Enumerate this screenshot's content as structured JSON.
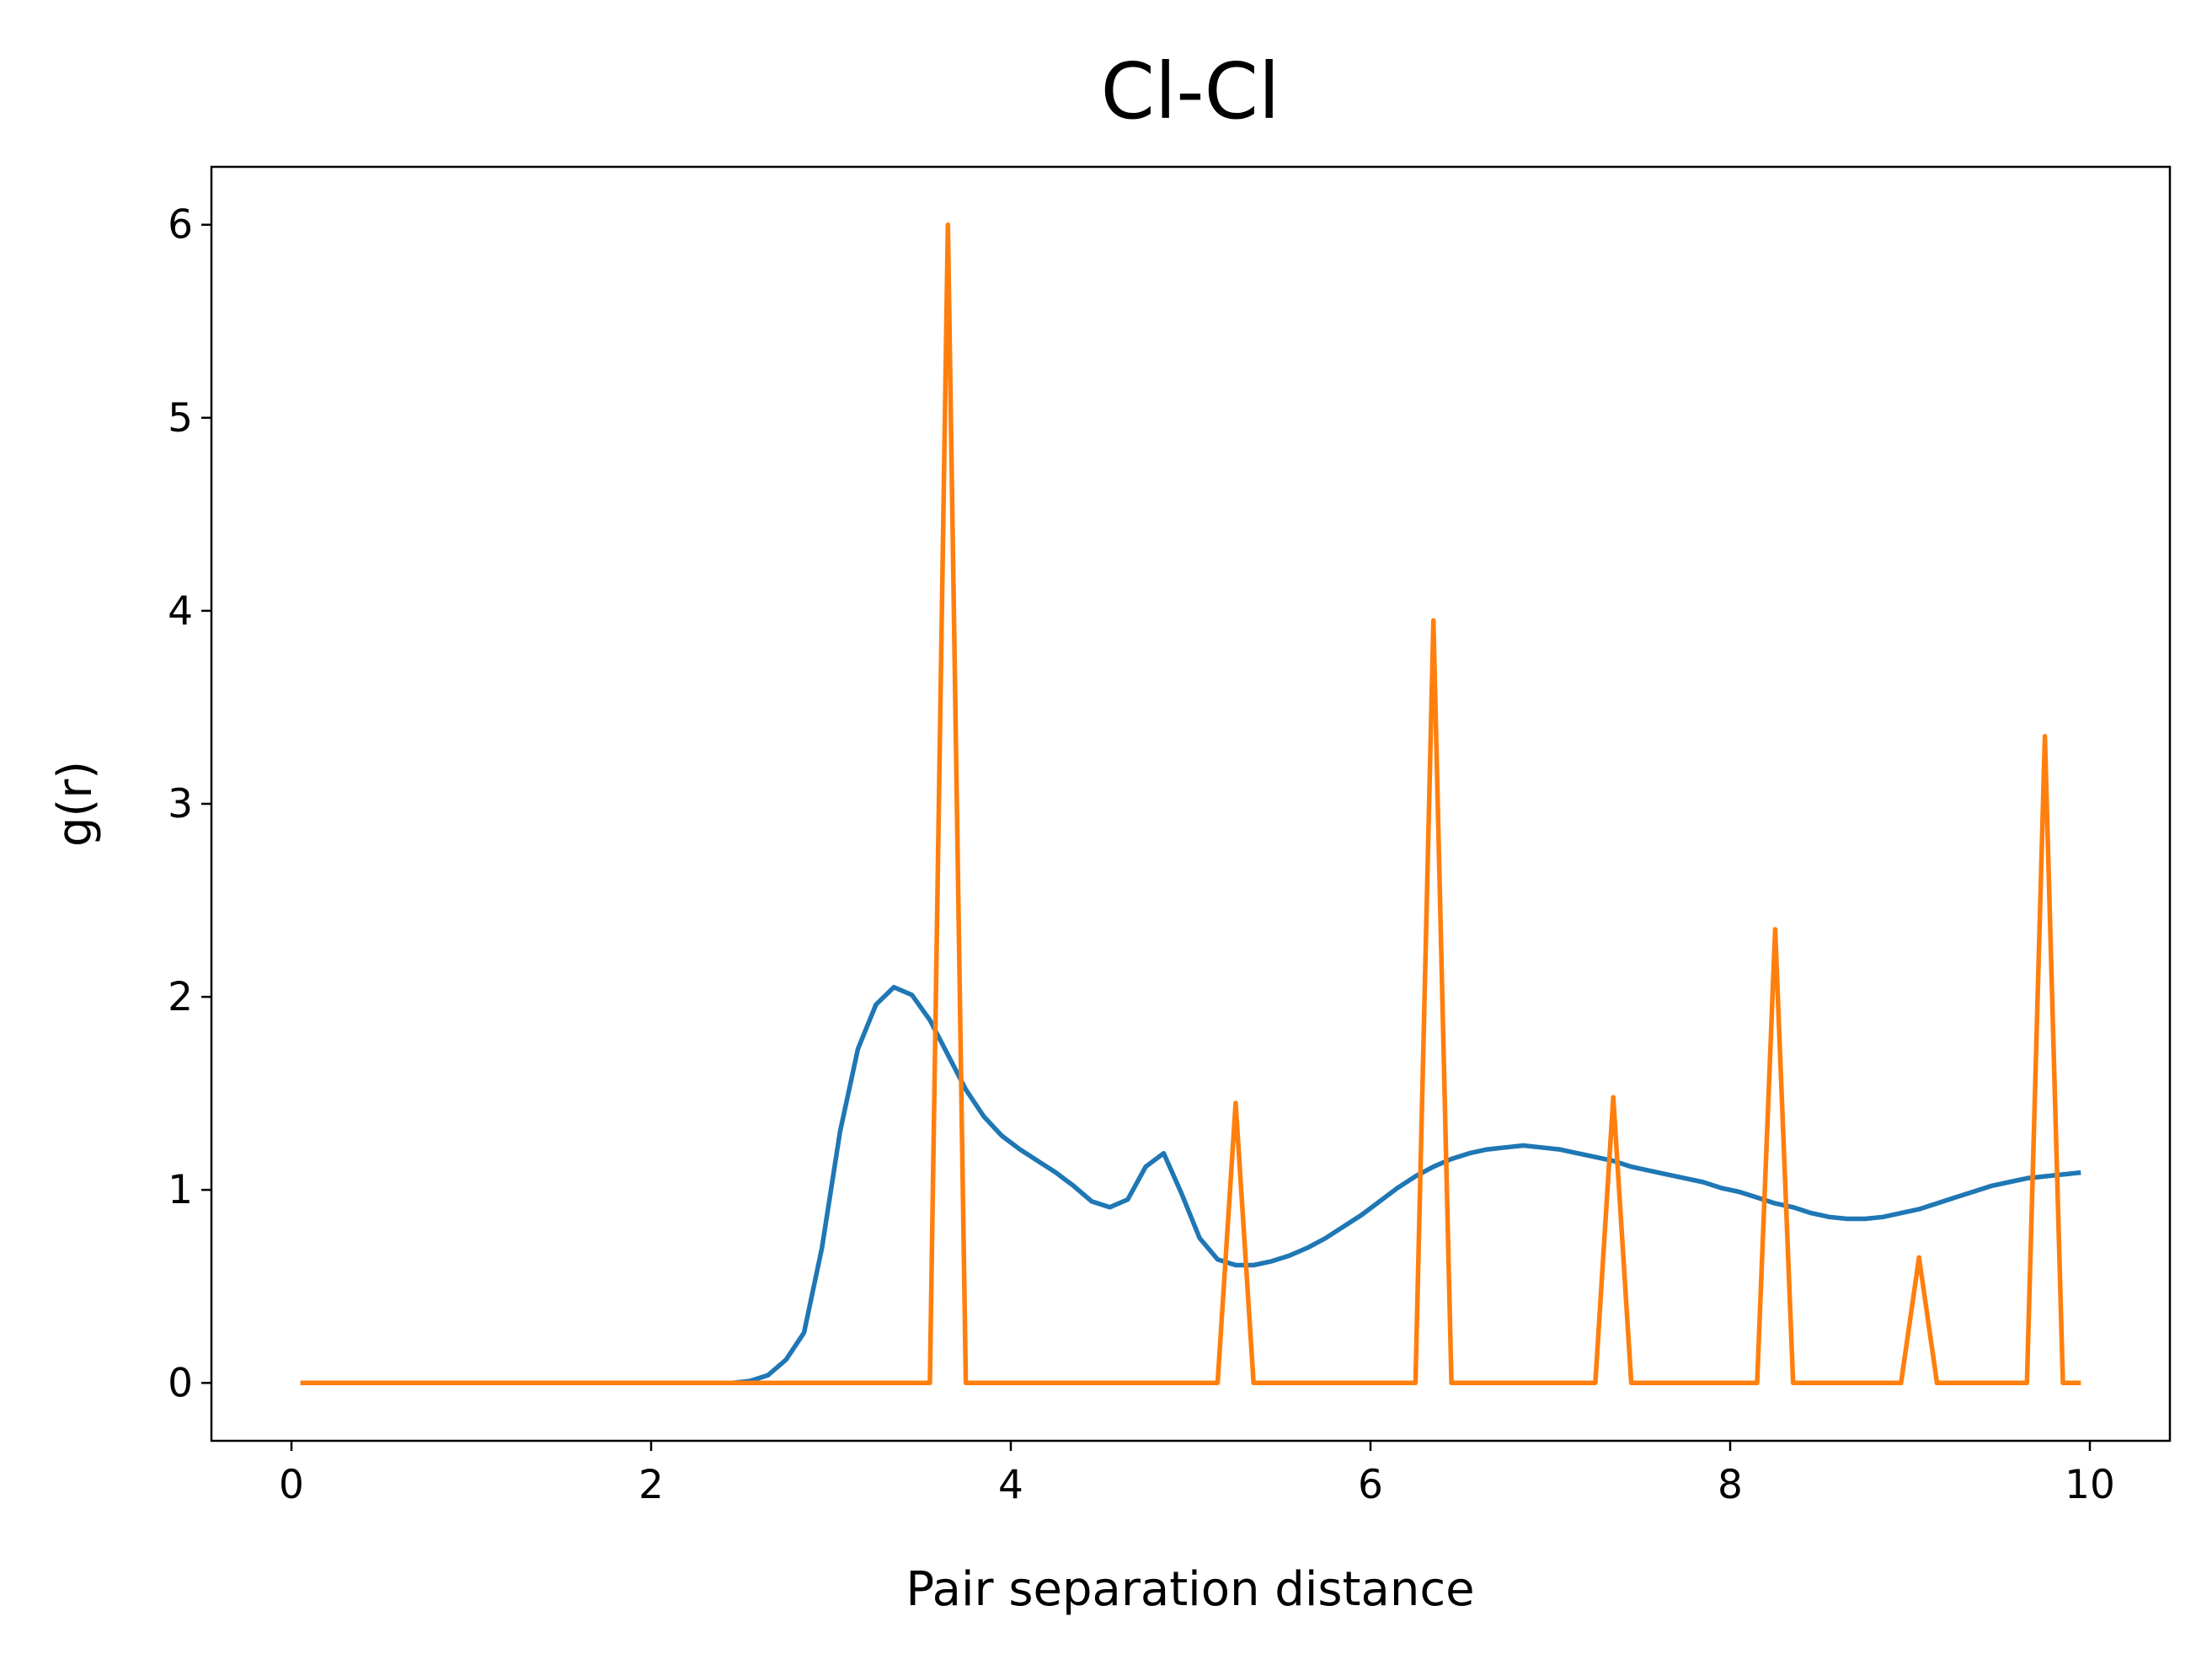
{
  "chart_data": {
    "type": "line",
    "title": "Cl-Cl",
    "xlabel": "Pair separation distance",
    "ylabel": "g(r)",
    "x": [
      0.05,
      0.15,
      0.25,
      0.35,
      0.45,
      0.55,
      0.65,
      0.75,
      0.85,
      0.95,
      1.05,
      1.15,
      1.25,
      1.35,
      1.45,
      1.55,
      1.65,
      1.75,
      1.85,
      1.95,
      2.05,
      2.15,
      2.25,
      2.35,
      2.45,
      2.55,
      2.65,
      2.75,
      2.85,
      2.95,
      3.05,
      3.15,
      3.25,
      3.35,
      3.45,
      3.55,
      3.65,
      3.75,
      3.85,
      3.95,
      4.05,
      4.15,
      4.25,
      4.35,
      4.45,
      4.55,
      4.65,
      4.75,
      4.85,
      4.95,
      5.05,
      5.15,
      5.25,
      5.35,
      5.45,
      5.55,
      5.65,
      5.75,
      5.85,
      5.95,
      6.05,
      6.15,
      6.25,
      6.35,
      6.45,
      6.55,
      6.65,
      6.75,
      6.85,
      6.95,
      7.05,
      7.15,
      7.25,
      7.35,
      7.45,
      7.55,
      7.65,
      7.75,
      7.85,
      7.95,
      8.05,
      8.15,
      8.25,
      8.35,
      8.45,
      8.55,
      8.65,
      8.75,
      8.85,
      8.95,
      9.05,
      9.15,
      9.25,
      9.35,
      9.45,
      9.55,
      9.65,
      9.75,
      9.85,
      9.95
    ],
    "series": [
      {
        "color": "#1f77b4",
        "values": [
          0,
          0,
          0,
          0,
          0,
          0,
          0,
          0,
          0,
          0,
          0,
          0,
          0,
          0,
          0,
          0,
          0,
          0,
          0,
          0,
          0,
          0,
          0,
          0,
          0,
          0.01,
          0.04,
          0.12,
          0.26,
          0.7,
          1.3,
          1.73,
          1.96,
          2.05,
          2.01,
          1.88,
          1.7,
          1.52,
          1.38,
          1.28,
          1.21,
          1.15,
          1.09,
          1.02,
          0.94,
          0.91,
          0.95,
          1.12,
          1.19,
          0.98,
          0.75,
          0.64,
          0.61,
          0.61,
          0.63,
          0.66,
          0.7,
          0.75,
          0.81,
          0.87,
          0.94,
          1.01,
          1.07,
          1.12,
          1.16,
          1.19,
          1.21,
          1.22,
          1.23,
          1.22,
          1.21,
          1.19,
          1.17,
          1.15,
          1.12,
          1.1,
          1.08,
          1.06,
          1.04,
          1.01,
          0.99,
          0.96,
          0.93,
          0.91,
          0.88,
          0.86,
          0.85,
          0.85,
          0.86,
          0.88,
          0.9,
          0.93,
          0.96,
          0.99,
          1.02,
          1.04,
          1.06,
          1.07,
          1.08,
          1.09
        ]
      },
      {
        "color": "#ff7f0e",
        "values": [
          0,
          0,
          0,
          0,
          0,
          0,
          0,
          0,
          0,
          0,
          0,
          0,
          0,
          0,
          0,
          0,
          0,
          0,
          0,
          0,
          0,
          0,
          0,
          0,
          0,
          0,
          0,
          0,
          0,
          0,
          0,
          0,
          0,
          0,
          0,
          0,
          6.0,
          0,
          0,
          0,
          0,
          0,
          0,
          0,
          0,
          0,
          0,
          0,
          0,
          0,
          0,
          0,
          1.45,
          0,
          0,
          0,
          0,
          0,
          0,
          0,
          0,
          0,
          0,
          3.95,
          0,
          0,
          0,
          0,
          0,
          0,
          0,
          0,
          0,
          1.48,
          0,
          0,
          0,
          0,
          0,
          0,
          0,
          0,
          2.35,
          0,
          0,
          0,
          0,
          0,
          0,
          0,
          0.65,
          0,
          0,
          0,
          0,
          0,
          0,
          3.35,
          0,
          0
        ]
      }
    ],
    "xlim": [
      -0.445,
      10.445
    ],
    "xticks": [
      0,
      2,
      4,
      6,
      8,
      10
    ],
    "ylim": [
      -0.3,
      6.3
    ],
    "yticks": [
      0,
      1,
      2,
      3,
      4,
      5,
      6
    ],
    "grid": false
  }
}
